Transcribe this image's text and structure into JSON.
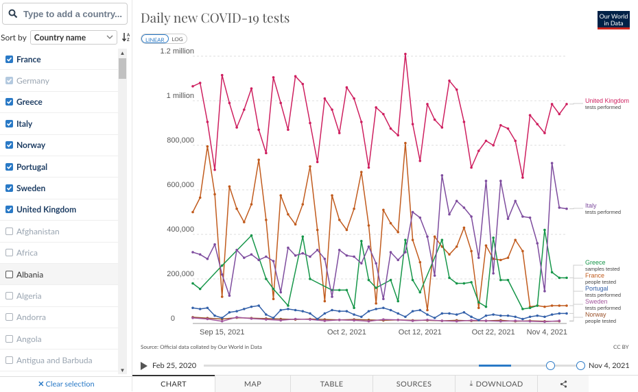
{
  "search": {
    "placeholder": "Type to add a country..."
  },
  "sort": {
    "label": "Sort by",
    "value": "Country name"
  },
  "countries": [
    {
      "name": "France",
      "state": "on"
    },
    {
      "name": "Germany",
      "state": "dim"
    },
    {
      "name": "Greece",
      "state": "on"
    },
    {
      "name": "Italy",
      "state": "on"
    },
    {
      "name": "Norway",
      "state": "on"
    },
    {
      "name": "Portugal",
      "state": "on"
    },
    {
      "name": "Sweden",
      "state": "on"
    },
    {
      "name": "United Kingdom",
      "state": "on"
    },
    {
      "name": "Afghanistan",
      "state": "off"
    },
    {
      "name": "Africa",
      "state": "off"
    },
    {
      "name": "Albania",
      "state": "off-dark"
    },
    {
      "name": "Algeria",
      "state": "off"
    },
    {
      "name": "Andorra",
      "state": "off"
    },
    {
      "name": "Angola",
      "state": "off"
    },
    {
      "name": "Antigua and Barbuda",
      "state": "off"
    }
  ],
  "clear_label": "Clear selection",
  "logo": {
    "line1": "Our World",
    "line2": "in Data"
  },
  "scale": {
    "linear": "LINEAR",
    "log": "LOG"
  },
  "source": "Source: Official data collated by Our World in Data",
  "license": "CC BY",
  "timeline": {
    "start": "Feb 25, 2020",
    "end": "Nov 4, 2021"
  },
  "tabs": [
    "CHART",
    "MAP",
    "TABLE",
    "SOURCES",
    "DOWNLOAD"
  ],
  "chart_data": {
    "type": "line",
    "title": "Daily new COVID-19 tests",
    "ylim": [
      0,
      1200000
    ],
    "yticks": [
      0,
      200000,
      400000,
      600000,
      800000,
      1000000,
      1200000
    ],
    "ytick_labels": [
      "0",
      "200,000",
      "400,000",
      "600,000",
      "800,000",
      "1 million",
      "1.2 million"
    ],
    "xlim": [
      0,
      51
    ],
    "xticks": [
      4,
      21,
      31,
      41,
      51
    ],
    "xtick_labels": [
      "Sep 15, 2021",
      "Oct 2, 2021",
      "Oct 12, 2021",
      "Oct 22, 2021",
      "Nov 4, 2021"
    ],
    "series": [
      {
        "name": "United Kingdom",
        "sublabel": "tests performed",
        "color": "#ce1f5f",
        "x": [
          0,
          1,
          2,
          3,
          4,
          5,
          6,
          7,
          8,
          9,
          10,
          11,
          12,
          13,
          14,
          15,
          16,
          17,
          18,
          19,
          20,
          21,
          22,
          23,
          24,
          25,
          26,
          27,
          28,
          29,
          30,
          31,
          32,
          33,
          34,
          35,
          36,
          37,
          38,
          39,
          40,
          41,
          42,
          43,
          44,
          45,
          46,
          47,
          48,
          49,
          50,
          51
        ],
        "values": [
          1065000,
          1080000,
          905000,
          690000,
          1115000,
          990000,
          880000,
          960000,
          1055000,
          870000,
          765000,
          1105000,
          990000,
          870000,
          1110000,
          1075000,
          900000,
          725000,
          1010000,
          960000,
          855000,
          1060000,
          1010000,
          905000,
          700000,
          970000,
          940000,
          875000,
          845000,
          1210000,
          895000,
          730000,
          985000,
          915000,
          880000,
          1090000,
          1050000,
          905000,
          700000,
          775000,
          820000,
          800000,
          890000,
          875000,
          820000,
          655000,
          935000,
          895000,
          855000,
          985000,
          940000,
          985000
        ]
      },
      {
        "name": "Italy",
        "sublabel": "tests performed",
        "color": "#7e4c9e",
        "x": [
          0,
          1,
          2,
          3,
          4,
          5,
          6,
          7,
          8,
          9,
          10,
          11,
          12,
          13,
          14,
          15,
          16,
          17,
          18,
          19,
          20,
          21,
          22,
          23,
          24,
          25,
          26,
          27,
          28,
          29,
          30,
          31,
          32,
          33,
          34,
          35,
          36,
          37,
          38,
          39,
          40,
          41,
          42,
          43,
          44,
          45,
          46,
          47,
          48,
          49,
          50,
          51
        ],
        "values": [
          320000,
          310000,
          290000,
          355000,
          220000,
          125000,
          330000,
          295000,
          310000,
          285000,
          300000,
          280000,
          140000,
          340000,
          305000,
          315000,
          300000,
          330000,
          290000,
          120000,
          330000,
          305000,
          300000,
          270000,
          345000,
          270000,
          110000,
          320000,
          285000,
          320000,
          500000,
          475000,
          390000,
          215000,
          665000,
          490000,
          550000,
          520000,
          480000,
          295000,
          640000,
          225000,
          640000,
          470000,
          550000,
          480000,
          475000,
          360000,
          145000,
          720000,
          520000,
          515000
        ]
      },
      {
        "name": "Greece",
        "sublabel": "samples tested",
        "color": "#169649",
        "x": [
          0,
          1,
          4,
          8,
          10,
          11,
          13,
          15,
          16,
          19,
          20,
          21,
          22,
          23,
          24,
          25,
          27,
          28,
          29,
          30,
          31,
          34,
          35,
          36,
          37,
          38,
          39,
          40,
          41,
          42,
          43,
          45,
          46,
          47,
          48,
          49,
          50,
          51
        ],
        "values": [
          180000,
          155000,
          260000,
          395000,
          200000,
          155000,
          80000,
          390000,
          200000,
          150000,
          150000,
          150000,
          70000,
          370000,
          195000,
          160000,
          195000,
          100000,
          375000,
          195000,
          140000,
          375000,
          205000,
          180000,
          180000,
          185000,
          95000,
          75000,
          385000,
          195000,
          195000,
          65000,
          70000,
          80000,
          420000,
          230000,
          205000,
          205000
        ]
      },
      {
        "name": "France",
        "sublabel": "people tested",
        "color": "#c15b1d",
        "x": [
          0,
          1,
          2,
          3,
          4,
          5,
          6,
          7,
          8,
          9,
          10,
          11,
          12,
          13,
          14,
          15,
          16,
          17,
          18,
          19,
          20,
          21,
          22,
          23,
          24,
          25,
          26,
          27,
          28,
          29,
          30,
          31,
          32,
          33,
          34,
          35,
          36,
          37,
          38,
          39,
          40,
          41,
          42,
          43,
          44,
          45,
          46,
          47,
          48,
          49,
          50,
          51
        ],
        "values": [
          500000,
          565000,
          795000,
          580000,
          120000,
          615000,
          515000,
          455000,
          535000,
          735000,
          465000,
          110000,
          575000,
          490000,
          445000,
          535000,
          705000,
          420000,
          100000,
          575000,
          465000,
          420000,
          515000,
          680000,
          440000,
          90000,
          510000,
          450000,
          410000,
          810000,
          375000,
          275000,
          60000,
          390000,
          345000,
          310000,
          345000,
          430000,
          325000,
          70000,
          350000,
          290000,
          285000,
          295000,
          375000,
          325000,
          75000,
          80000,
          75000,
          80000,
          80000,
          80000
        ]
      },
      {
        "name": "Portugal",
        "sublabel": "tests performed",
        "color": "#3360a9",
        "x": [
          0,
          1,
          2,
          3,
          4,
          5,
          6,
          7,
          8,
          9,
          10,
          11,
          12,
          13,
          14,
          15,
          16,
          17,
          18,
          19,
          20,
          21,
          22,
          23,
          24,
          25,
          26,
          27,
          28,
          29,
          30,
          31,
          32,
          33,
          34,
          35,
          36,
          37,
          38,
          39,
          40,
          41,
          42,
          43,
          44,
          45,
          46,
          47,
          48,
          49,
          50,
          51
        ],
        "values": [
          70000,
          65000,
          70000,
          35000,
          25000,
          50000,
          55000,
          65000,
          75000,
          80000,
          40000,
          25000,
          60000,
          65000,
          60000,
          55000,
          45000,
          20000,
          45000,
          60000,
          55000,
          55000,
          40000,
          30000,
          55000,
          65000,
          70000,
          60000,
          45000,
          30000,
          55000,
          60000,
          40000,
          25000,
          45000,
          45000,
          40000,
          50000,
          30000,
          15000,
          35000,
          40000,
          35000,
          35000,
          30000,
          20000,
          30000,
          35000,
          30000,
          40000,
          45000,
          45000
        ]
      },
      {
        "name": "Sweden",
        "sublabel": "tests performed",
        "color": "#a2559c",
        "x": [
          0,
          2,
          4,
          6,
          8,
          10,
          12,
          14,
          16,
          18,
          20,
          22,
          24,
          26,
          28,
          30,
          32,
          34,
          36,
          38,
          40,
          42,
          44,
          46,
          48,
          50
        ],
        "values": [
          25000,
          20000,
          10000,
          28000,
          22000,
          18000,
          14000,
          20000,
          18000,
          12000,
          16000,
          14000,
          10000,
          18000,
          16000,
          12000,
          16000,
          12000,
          10000,
          14000,
          12000,
          10000,
          12000,
          10000,
          8000,
          12000
        ]
      },
      {
        "name": "Norway",
        "sublabel": "people tested",
        "color": "#9a5129",
        "x": [
          0,
          2,
          4,
          6,
          8,
          10,
          12,
          14,
          16,
          18,
          20,
          22,
          24,
          26,
          28,
          30,
          32,
          34,
          36,
          38,
          40,
          42,
          44,
          46,
          48,
          50
        ],
        "values": [
          28000,
          24000,
          20000,
          26000,
          24000,
          22000,
          20000,
          18000,
          20000,
          18000,
          16000,
          18000,
          16000,
          14000,
          16000,
          14000,
          14000,
          12000,
          14000,
          12000,
          12000,
          14000,
          10000,
          12000,
          10000,
          10000
        ]
      }
    ],
    "legend_order": [
      "United Kingdom",
      "Italy",
      "Greece",
      "France",
      "Portugal",
      "Sweden",
      "Norway"
    ]
  }
}
